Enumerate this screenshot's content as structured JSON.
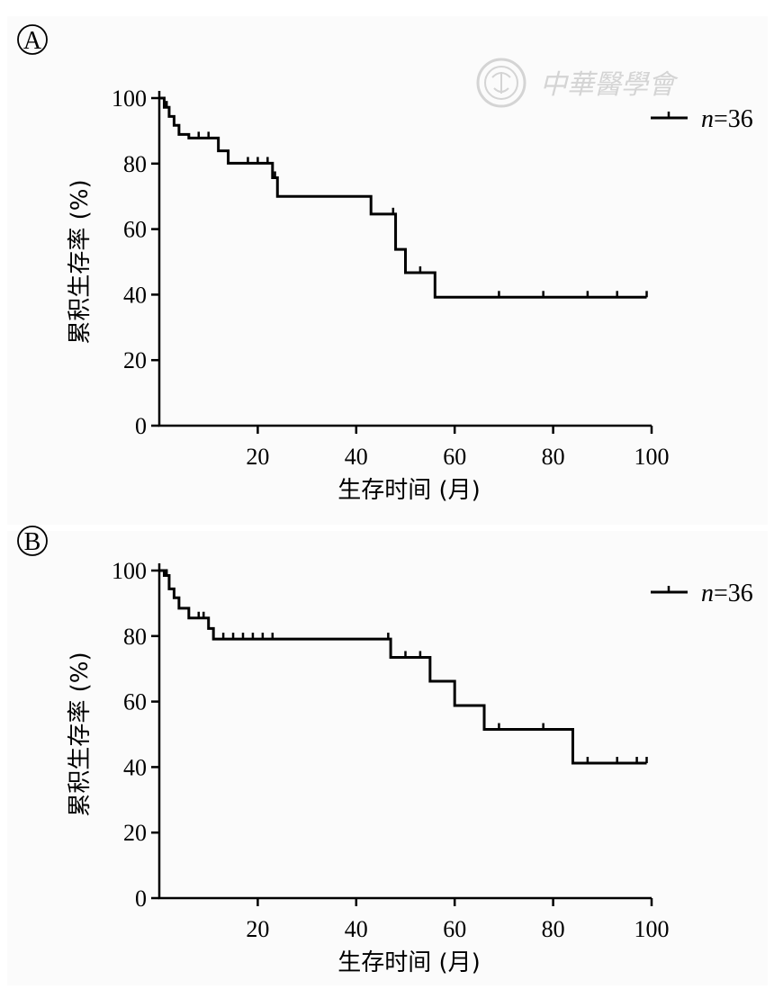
{
  "watermark": {
    "text": "中華醫學會"
  },
  "chart_data": [
    {
      "type": "line",
      "panel_label": "A",
      "xlabel_main": "生存时间",
      "xlabel_unit": "(月)",
      "ylabel_main": "累积生存率",
      "ylabel_unit": "(%)",
      "xlim": [
        0,
        100
      ],
      "ylim": [
        0,
        100
      ],
      "x_ticks": [
        20,
        40,
        60,
        80,
        100
      ],
      "y_ticks": [
        0,
        20,
        40,
        60,
        80,
        100
      ],
      "legend": {
        "n_label": "n",
        "n_value": "=36",
        "position": "top-right"
      },
      "series": [
        {
          "steps": [
            [
              0,
              100
            ],
            [
              1,
              97.2
            ],
            [
              2,
              94.4
            ],
            [
              3,
              91.7
            ],
            [
              4,
              88.9
            ],
            [
              6,
              87.8
            ],
            [
              12,
              83.9
            ],
            [
              14,
              80.1
            ],
            [
              23,
              75.7
            ],
            [
              24,
              70.0
            ],
            [
              43,
              64.6
            ],
            [
              48,
              53.8
            ],
            [
              50,
              46.7
            ],
            [
              56,
              39.2
            ],
            [
              99,
              39.2
            ]
          ],
          "censored": [
            1.5,
            8,
            10,
            18,
            20,
            22,
            23.5,
            47.5,
            53,
            69,
            78,
            87,
            93,
            99
          ]
        }
      ]
    },
    {
      "type": "line",
      "panel_label": "B",
      "xlabel_main": "生存时间",
      "xlabel_unit": "(月)",
      "ylabel_main": "累积生存率",
      "ylabel_unit": "(%)",
      "xlim": [
        0,
        100
      ],
      "ylim": [
        0,
        100
      ],
      "x_ticks": [
        20,
        40,
        60,
        80,
        100
      ],
      "y_ticks": [
        0,
        20,
        40,
        60,
        80,
        100
      ],
      "legend": {
        "n_label": "n",
        "n_value": "=36",
        "position": "top-right"
      },
      "series": [
        {
          "steps": [
            [
              0,
              100
            ],
            [
              1,
              98.5
            ],
            [
              2,
              94.4
            ],
            [
              3,
              91.7
            ],
            [
              4,
              88.5
            ],
            [
              6,
              85.5
            ],
            [
              10,
              82.3
            ],
            [
              11,
              79.1
            ],
            [
              47,
              73.5
            ],
            [
              55,
              66.2
            ],
            [
              60,
              58.8
            ],
            [
              66,
              51.5
            ],
            [
              84,
              41.2
            ],
            [
              99,
              41.2
            ]
          ],
          "censored": [
            1.5,
            8,
            9,
            13,
            15,
            17,
            19,
            21,
            23,
            46.5,
            50,
            53,
            69,
            78,
            87,
            93,
            97,
            99
          ]
        }
      ]
    }
  ]
}
